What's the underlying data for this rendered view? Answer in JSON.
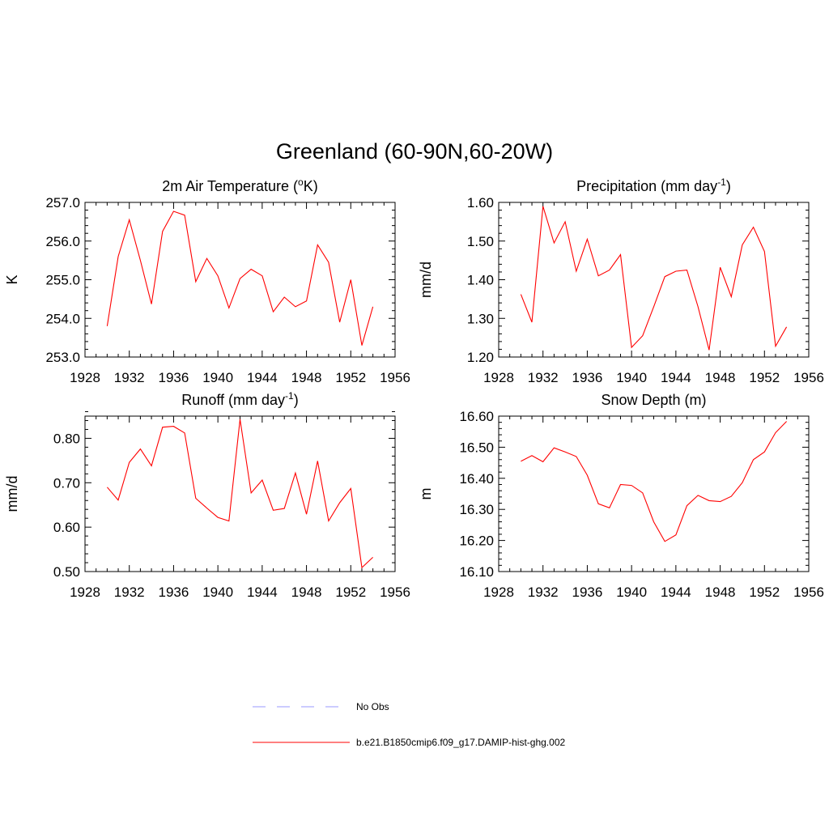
{
  "figure": {
    "title": "Greenland (60-90N,60-20W)"
  },
  "colors": {
    "model_line": "#ff0000",
    "obs_line": "#9999ff",
    "axes": "#000000"
  },
  "chart_data": [
    {
      "type": "line",
      "id": "t2m",
      "title": "2m Air Temperature (",
      "title_sup": "o",
      "title_tail": "K)",
      "xlabel": "",
      "ylabel": "K",
      "xlim": [
        1928,
        1956
      ],
      "ylim": [
        253.0,
        257.0
      ],
      "xticks": [
        1928,
        1932,
        1936,
        1940,
        1944,
        1948,
        1952,
        1956
      ],
      "yticks": [
        253.0,
        254.0,
        255.0,
        256.0,
        257.0
      ],
      "ydecimals": 1,
      "grid": false,
      "x": [
        1930,
        1931,
        1932,
        1933,
        1934,
        1935,
        1936,
        1937,
        1938,
        1939,
        1940,
        1941,
        1942,
        1943,
        1944,
        1945,
        1946,
        1947,
        1948,
        1949,
        1950,
        1951,
        1952,
        1953,
        1954
      ],
      "series": [
        {
          "name": "b.e21.B1850cmip6.f09_g17.DAMIP-hist-ghg.002",
          "values": [
            253.8,
            255.6,
            256.55,
            255.5,
            254.37,
            256.25,
            256.77,
            256.67,
            254.95,
            255.55,
            255.1,
            254.27,
            255.03,
            255.27,
            255.1,
            254.17,
            254.55,
            254.3,
            254.45,
            255.9,
            255.45,
            253.9,
            255.0,
            253.3,
            254.3
          ]
        }
      ]
    },
    {
      "type": "line",
      "id": "precip",
      "title": "Precipitation (mm day",
      "title_sup": "-1",
      "title_tail": ")",
      "xlabel": "",
      "ylabel": "mm/d",
      "xlim": [
        1928,
        1956
      ],
      "ylim": [
        1.2,
        1.6
      ],
      "xticks": [
        1928,
        1932,
        1936,
        1940,
        1944,
        1948,
        1952,
        1956
      ],
      "yticks": [
        1.2,
        1.3,
        1.4,
        1.5,
        1.6
      ],
      "ydecimals": 2,
      "grid": false,
      "x": [
        1930,
        1931,
        1932,
        1933,
        1934,
        1935,
        1936,
        1937,
        1938,
        1939,
        1940,
        1941,
        1942,
        1943,
        1944,
        1945,
        1946,
        1947,
        1948,
        1949,
        1950,
        1951,
        1952,
        1953,
        1954
      ],
      "series": [
        {
          "name": "b.e21.B1850cmip6.f09_g17.DAMIP-hist-ghg.002",
          "values": [
            1.362,
            1.29,
            1.59,
            1.495,
            1.55,
            1.422,
            1.505,
            1.41,
            1.425,
            1.465,
            1.225,
            1.255,
            1.33,
            1.408,
            1.422,
            1.425,
            1.33,
            1.218,
            1.432,
            1.356,
            1.49,
            1.536,
            1.473,
            1.228,
            1.278
          ]
        }
      ]
    },
    {
      "type": "line",
      "id": "runoff",
      "title": "Runoff (mm day",
      "title_sup": "-1",
      "title_tail": ")",
      "xlabel": "",
      "ylabel": "mm/d",
      "xlim": [
        1928,
        1956
      ],
      "ylim": [
        0.5,
        0.85
      ],
      "xticks": [
        1928,
        1932,
        1936,
        1940,
        1944,
        1948,
        1952,
        1956
      ],
      "yticks": [
        0.5,
        0.6,
        0.7,
        0.8
      ],
      "ydecimals": 2,
      "grid": false,
      "x": [
        1930,
        1931,
        1932,
        1933,
        1934,
        1935,
        1936,
        1937,
        1938,
        1939,
        1940,
        1941,
        1942,
        1943,
        1944,
        1945,
        1946,
        1947,
        1948,
        1949,
        1950,
        1951,
        1952,
        1953,
        1954
      ],
      "series": [
        {
          "name": "b.e21.B1850cmip6.f09_g17.DAMIP-hist-ghg.002",
          "values": [
            0.69,
            0.661,
            0.746,
            0.776,
            0.738,
            0.825,
            0.827,
            0.812,
            0.665,
            0.643,
            0.622,
            0.614,
            0.843,
            0.677,
            0.706,
            0.638,
            0.642,
            0.722,
            0.629,
            0.749,
            0.614,
            0.655,
            0.687,
            0.509,
            0.532
          ]
        }
      ]
    },
    {
      "type": "line",
      "id": "snowdepth",
      "title": "Snow Depth (m)",
      "title_sup": "",
      "title_tail": "",
      "xlabel": "",
      "ylabel": "m",
      "xlim": [
        1928,
        1956
      ],
      "ylim": [
        16.1,
        16.6
      ],
      "xticks": [
        1928,
        1932,
        1936,
        1940,
        1944,
        1948,
        1952,
        1956
      ],
      "yticks": [
        16.1,
        16.2,
        16.3,
        16.4,
        16.5,
        16.6
      ],
      "ydecimals": 2,
      "grid": false,
      "x": [
        1930,
        1931,
        1932,
        1933,
        1934,
        1935,
        1936,
        1937,
        1938,
        1939,
        1940,
        1941,
        1942,
        1943,
        1944,
        1945,
        1946,
        1947,
        1948,
        1949,
        1950,
        1951,
        1952,
        1953,
        1954
      ],
      "series": [
        {
          "name": "b.e21.B1850cmip6.f09_g17.DAMIP-hist-ghg.002",
          "values": [
            16.455,
            16.473,
            16.453,
            16.498,
            16.485,
            16.47,
            16.41,
            16.318,
            16.305,
            16.38,
            16.377,
            16.353,
            16.26,
            16.197,
            16.218,
            16.312,
            16.345,
            16.328,
            16.325,
            16.342,
            16.386,
            16.46,
            16.485,
            16.547,
            16.583
          ]
        }
      ]
    }
  ],
  "legend": {
    "placement": "bottom-center",
    "items": [
      {
        "label": "No Obs",
        "style": "dashed",
        "color": "#9999ff"
      },
      {
        "label": "b.e21.B1850cmip6.f09_g17.DAMIP-hist-ghg.002",
        "style": "solid",
        "color": "#ff0000"
      }
    ]
  }
}
